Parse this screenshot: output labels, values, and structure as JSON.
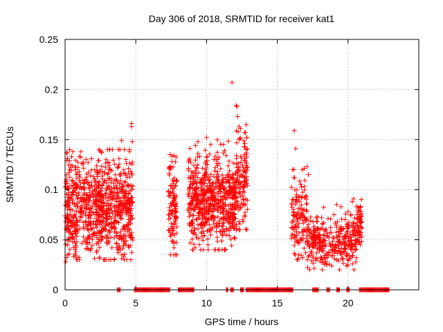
{
  "chart_data": {
    "type": "scatter",
    "title": "Day 306 of 2018, SRMTID for receiver kat1",
    "xlabel": "GPS time / hours",
    "ylabel": "SRMTID / TECUs",
    "xlim": [
      0,
      25
    ],
    "ylim": [
      0,
      0.25
    ],
    "x_ticks": [
      0,
      5,
      10,
      15,
      20
    ],
    "x_tick_labels": [
      "0",
      "5",
      "10",
      "15",
      "20"
    ],
    "y_ticks": [
      0,
      0.05,
      0.1,
      0.15,
      0.2,
      0.25
    ],
    "y_tick_labels": [
      "0",
      "0.05",
      "0.1",
      "0.15",
      "0.2",
      "0.25"
    ],
    "grid": true,
    "marker": "plus",
    "series_color": "#ff0000",
    "series": [
      {
        "name": "SRMTID",
        "clusters": [
          {
            "x_start": 0.0,
            "x_end": 4.8,
            "count": 900,
            "y_mean": 0.08,
            "y_spread": 0.025,
            "y_min": 0.03,
            "y_max": 0.14
          },
          {
            "x_start": 7.3,
            "x_end": 7.9,
            "count": 110,
            "y_mean": 0.085,
            "y_spread": 0.022,
            "y_min": 0.035,
            "y_max": 0.135
          },
          {
            "x_start": 8.7,
            "x_end": 12.1,
            "count": 650,
            "y_mean": 0.09,
            "y_spread": 0.022,
            "y_min": 0.04,
            "y_max": 0.15
          },
          {
            "x_start": 12.1,
            "x_end": 12.9,
            "count": 120,
            "y_mean": 0.115,
            "y_spread": 0.022,
            "y_min": 0.06,
            "y_max": 0.16
          },
          {
            "x_start": 16.0,
            "x_end": 17.1,
            "count": 130,
            "y_mean": 0.075,
            "y_spread": 0.018,
            "y_min": 0.03,
            "y_max": 0.12
          },
          {
            "x_start": 17.1,
            "x_end": 20.6,
            "count": 330,
            "y_mean": 0.048,
            "y_spread": 0.012,
            "y_min": 0.02,
            "y_max": 0.085
          },
          {
            "x_start": 20.6,
            "x_end": 21.0,
            "count": 60,
            "y_mean": 0.065,
            "y_spread": 0.01,
            "y_min": 0.045,
            "y_max": 0.09
          }
        ],
        "outliers": [
          [
            4.7,
            0.166
          ],
          [
            4.7,
            0.163
          ],
          [
            4.75,
            0.148
          ],
          [
            4.0,
            0.149
          ],
          [
            4.2,
            0.14
          ],
          [
            3.0,
            0.14
          ],
          [
            2.9,
            0.13
          ],
          [
            0.4,
            0.122
          ],
          [
            0.8,
            0.115
          ],
          [
            1.0,
            0.118
          ],
          [
            3.2,
            0.12
          ],
          [
            4.3,
            0.045
          ],
          [
            0.1,
            0.032
          ],
          [
            0.05,
            0.028
          ],
          [
            7.45,
            0.035
          ],
          [
            7.7,
            0.042
          ],
          [
            7.55,
            0.128
          ],
          [
            7.7,
            0.134
          ],
          [
            11.8,
            0.207
          ],
          [
            12.1,
            0.184
          ],
          [
            12.15,
            0.183
          ],
          [
            12.2,
            0.173
          ],
          [
            12.3,
            0.163
          ],
          [
            12.4,
            0.161
          ],
          [
            12.7,
            0.157
          ],
          [
            12.75,
            0.157
          ],
          [
            12.7,
            0.146
          ],
          [
            12.8,
            0.165
          ],
          [
            12.8,
            0.14
          ],
          [
            12.1,
            0.061
          ],
          [
            12.0,
            0.065
          ],
          [
            10.0,
            0.152
          ],
          [
            10.3,
            0.145
          ],
          [
            11.2,
            0.145
          ],
          [
            10.1,
            0.045
          ],
          [
            9.2,
            0.042
          ],
          [
            16.2,
            0.159
          ],
          [
            16.3,
            0.141
          ],
          [
            16.2,
            0.052
          ],
          [
            16.5,
            0.035
          ],
          [
            16.8,
            0.032
          ],
          [
            17.0,
            0.037
          ],
          [
            17.1,
            0.123
          ],
          [
            16.9,
            0.121
          ],
          [
            17.2,
            0.115
          ],
          [
            19.0,
            0.075
          ],
          [
            19.2,
            0.085
          ],
          [
            19.5,
            0.083
          ],
          [
            20.0,
            0.078
          ],
          [
            20.3,
            0.088
          ],
          [
            20.4,
            0.091
          ],
          [
            18.5,
            0.025
          ],
          [
            19.4,
            0.02
          ],
          [
            18.2,
            0.03
          ],
          [
            19.9,
            0.024
          ],
          [
            20.1,
            0.034
          ]
        ],
        "zero_intervals": [
          [
            3.7,
            3.9
          ],
          [
            4.9,
            7.4
          ],
          [
            8.0,
            9.1
          ],
          [
            11.4,
            11.5
          ],
          [
            11.7,
            11.9
          ],
          [
            12.4,
            12.6
          ],
          [
            12.8,
            16.1
          ],
          [
            17.5,
            17.9
          ],
          [
            18.5,
            18.7
          ],
          [
            19.2,
            19.4
          ],
          [
            19.9,
            20.1
          ],
          [
            20.8,
            22.9
          ]
        ],
        "zero_spacing": 0.05
      }
    ]
  }
}
